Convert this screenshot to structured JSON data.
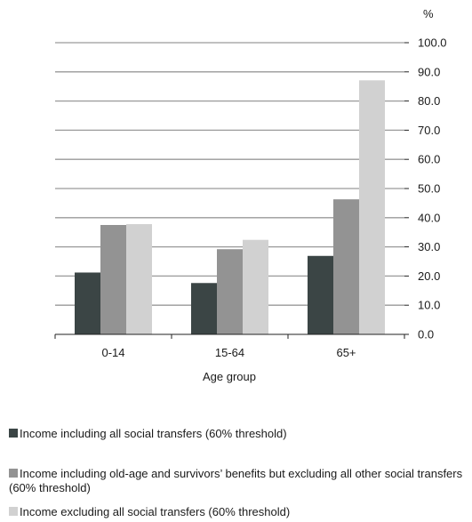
{
  "chart_data": {
    "type": "bar",
    "unit_label": "%",
    "xlabel": "Age group",
    "ylabel": "",
    "categories": [
      "0-14",
      "15-64",
      "65+"
    ],
    "ylim": [
      0,
      100
    ],
    "y_ticks": [
      "0.0",
      "10.0",
      "20.0",
      "30.0",
      "40.0",
      "50.0",
      "60.0",
      "70.0",
      "80.0",
      "90.0",
      "100.0"
    ],
    "grid": true,
    "legend_position": "bottom",
    "series": [
      {
        "name": "Income including all social transfers (60% threshold)",
        "color": "#3b4545",
        "values": [
          21.2,
          17.6,
          26.9
        ]
      },
      {
        "name": "Income including old-age and survivors’ benefits but excluding all other social transfers  (60% threshold)",
        "color": "#939393",
        "values": [
          37.5,
          29.2,
          46.3
        ]
      },
      {
        "name": "Income excluding all social transfers (60% threshold)",
        "color": "#d1d1d1",
        "values": [
          37.8,
          32.4,
          87.1
        ]
      }
    ]
  }
}
